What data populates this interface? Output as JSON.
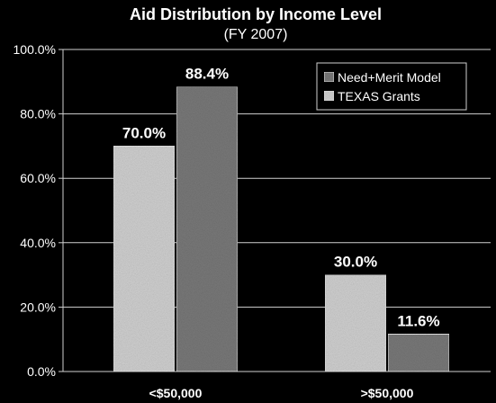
{
  "colors": {
    "background": "#000000",
    "text": "#ffffff",
    "gridline": "#cfcfcf",
    "texas_grants_bar": "#d2d2d2",
    "need_merit_bar": "#7a7a7a"
  },
  "chart_data": {
    "type": "bar",
    "title": "Aid Distribution by Income Level",
    "subtitle": "(FY 2007)",
    "xlabel": "",
    "ylabel": "",
    "categories": [
      "<$50,000",
      ">$50,000"
    ],
    "series": [
      {
        "name": "TEXAS Grants",
        "values": [
          70.0,
          30.0
        ],
        "labels": [
          "70.0%",
          "30.0%"
        ]
      },
      {
        "name": "Need+Merit Model",
        "values": [
          88.4,
          11.6
        ],
        "labels": [
          "88.4%",
          "11.6%"
        ]
      }
    ],
    "legend_order": [
      "Need+Merit Model",
      "TEXAS Grants"
    ],
    "legend_position": "top-right",
    "ylim": [
      0,
      100
    ],
    "yticks": [
      0,
      20,
      40,
      60,
      80,
      100
    ],
    "ytick_labels": [
      "0.0%",
      "20.0%",
      "40.0%",
      "60.0%",
      "80.0%",
      "100.0%"
    ],
    "grid": true
  }
}
